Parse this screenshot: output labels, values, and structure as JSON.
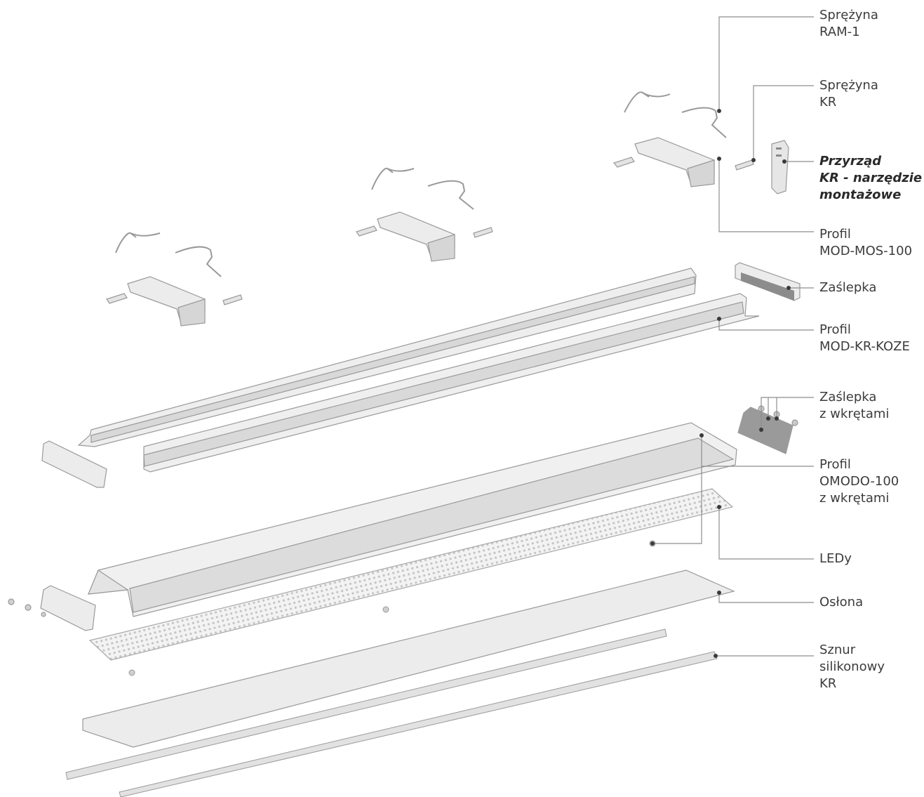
{
  "colors": {
    "leader": "#8e8e8e",
    "dot": "#3a3a3a",
    "part_fill": "#ebebeb",
    "part_shade": "#c9c9c9",
    "part_stroke": "#9a9a9a",
    "end_cap": "#8c8c8c",
    "led_grid": "#c4c4c4"
  },
  "labels": [
    {
      "id": "spring-ram1",
      "lines": [
        "Sprężyna",
        "RAM-1"
      ]
    },
    {
      "id": "spring-kr",
      "lines": [
        "Sprężyna",
        "KR"
      ]
    },
    {
      "id": "mounting-tool",
      "lines": [
        "Przyrząd",
        "KR - narzędzie",
        "montażowe"
      ],
      "emphasis": true
    },
    {
      "id": "profile-mod-mos",
      "lines": [
        "Profil",
        "MOD-MOS-100"
      ]
    },
    {
      "id": "end-cap",
      "lines": [
        "Zaślepka"
      ]
    },
    {
      "id": "profile-mod-kr-koze",
      "lines": [
        "Profil",
        "MOD-KR-KOZE"
      ]
    },
    {
      "id": "end-cap-screws",
      "lines": [
        "Zaślepka",
        "z wkrętami"
      ]
    },
    {
      "id": "profile-omodo",
      "lines": [
        "Profil",
        "OMODO-100",
        "z wkrętami"
      ]
    },
    {
      "id": "leds",
      "lines": [
        "LEDy"
      ]
    },
    {
      "id": "cover",
      "lines": [
        "Osłona"
      ]
    },
    {
      "id": "silicone-cord",
      "lines": [
        "Sznur",
        "silikonowy",
        "KR"
      ]
    }
  ]
}
